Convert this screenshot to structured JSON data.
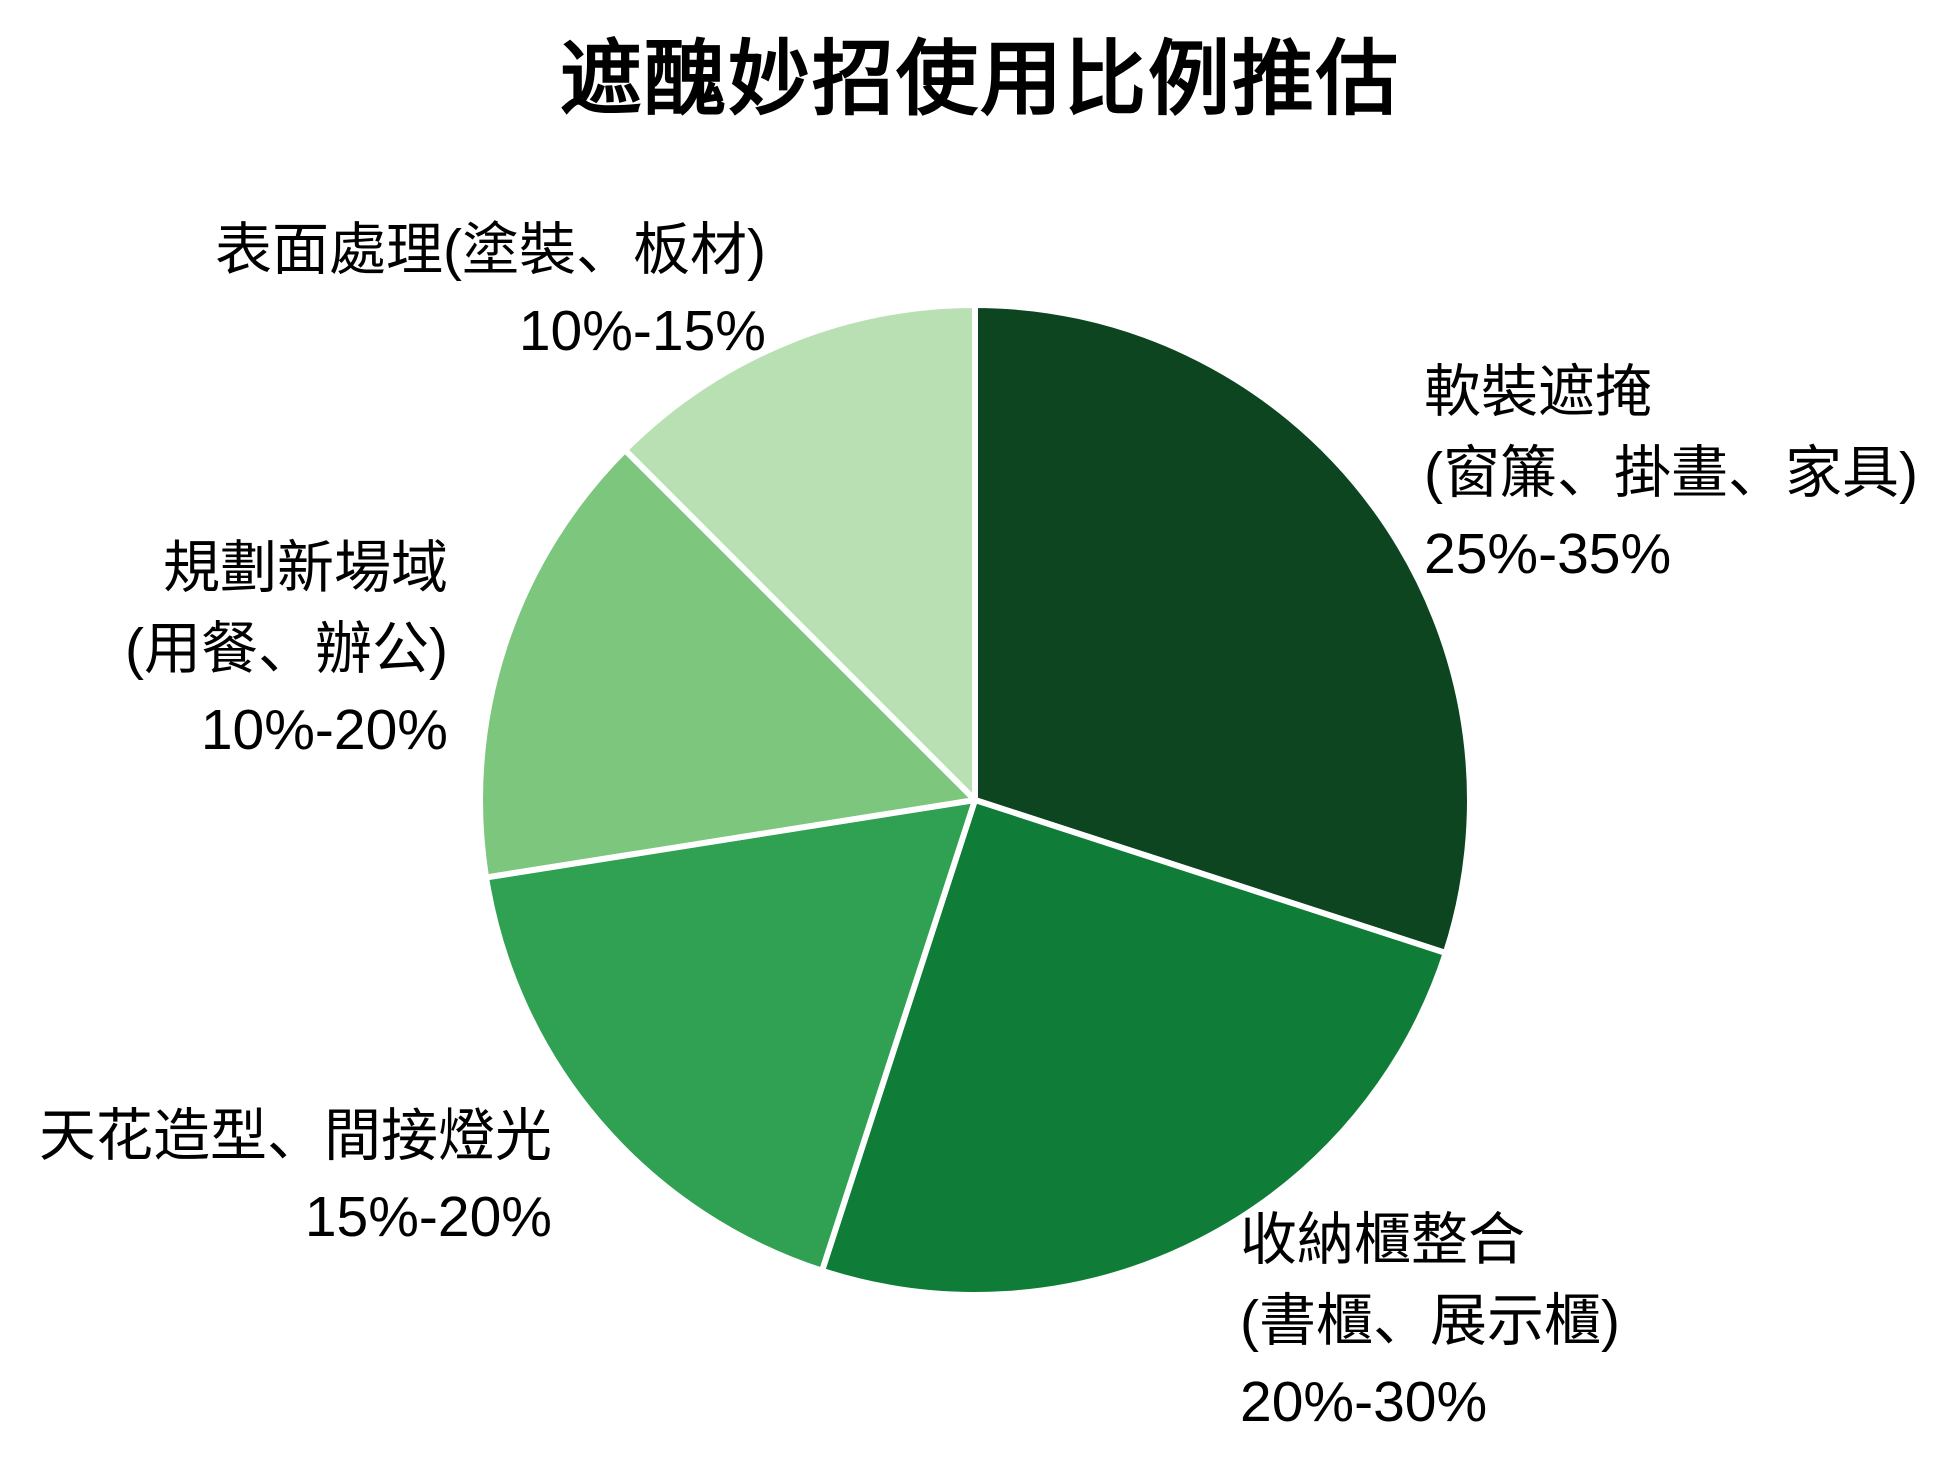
{
  "title": "遮醜妙招使用比例推估",
  "background_color": "#ffffff",
  "text_color": "#000000",
  "chart_data": {
    "type": "pie",
    "title": "遮醜妙招使用比例推估",
    "legend": "none",
    "labels_position": "outside",
    "start_angle_deg": 0,
    "direction": "clockwise",
    "stroke": {
      "color": "#ffffff",
      "width": 6
    },
    "slices": [
      {
        "id": "soft-decor-cover",
        "label": "軟裝遮掩",
        "sublabel": "(窗簾、掛畫、家具)",
        "range": "25%-35%",
        "midpoint_pct": 30,
        "angle_deg": 108,
        "color": "#0c4520"
      },
      {
        "id": "storage-cabinet-integration",
        "label": "收納櫃整合",
        "sublabel": "(書櫃、展示櫃)",
        "range": "20%-30%",
        "midpoint_pct": 25,
        "angle_deg": 90,
        "color": "#0f7d37"
      },
      {
        "id": "ceiling-design-indirect-lighting",
        "label": "天花造型、間接燈光",
        "range": "15%-20%",
        "midpoint_pct": 17.5,
        "angle_deg": 63,
        "color": "#30a053"
      },
      {
        "id": "new-zone-planning",
        "label": "規劃新場域",
        "sublabel": "(用餐、辦公)",
        "range": "10%-20%",
        "midpoint_pct": 15,
        "angle_deg": 54,
        "color": "#7cc67d"
      },
      {
        "id": "surface-treatment",
        "label": "表面處理(塗裝、板材)",
        "range": "10%-15%",
        "midpoint_pct": 12.5,
        "angle_deg": 45,
        "color": "#b8e0b2"
      }
    ]
  }
}
